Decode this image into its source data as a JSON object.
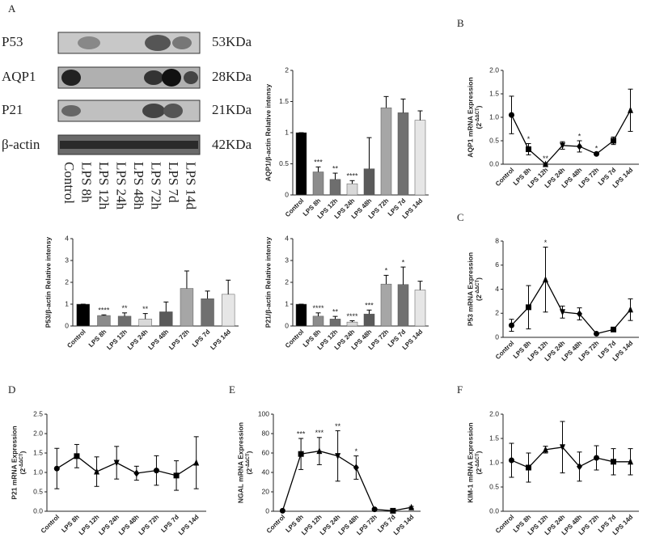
{
  "panels": [
    "A",
    "B",
    "C",
    "D",
    "E",
    "F"
  ],
  "blot": {
    "proteins": [
      "P53",
      "AQP1",
      "P21",
      "β-actin"
    ],
    "sizes": [
      "53KDa",
      "28KDa",
      "21KDa",
      "42KDa"
    ],
    "lanes": [
      "Control",
      "LPS 8h",
      "LPS 12h",
      "LPS 24h",
      "LPS 48h",
      "LPS 72h",
      "LPS 7d",
      "LPS 14d"
    ]
  },
  "chart_data": [
    {
      "type": "bar",
      "ylabel": "AQP1/β-actin Relative intensy",
      "categories": [
        "Control",
        "LPS 8h",
        "LPS 12h",
        "LPS 24h",
        "LPS 48h",
        "LPS 72h",
        "LPS 7d",
        "LPS 14d"
      ],
      "values": [
        1.0,
        0.37,
        0.25,
        0.18,
        0.42,
        1.4,
        1.32,
        1.2
      ],
      "errors": [
        0,
        0.08,
        0.1,
        0.05,
        0.5,
        0.18,
        0.22,
        0.15
      ],
      "annotations": [
        null,
        "***",
        "**",
        "****",
        null,
        null,
        null,
        null
      ],
      "colors": [
        "#000000",
        "#8c8c8c",
        "#6e6e6e",
        "#d9d9d9",
        "#5a5a5a",
        "#a6a6a6",
        "#707070",
        "#e6e6e6"
      ],
      "ylim": [
        0,
        2
      ],
      "yticks": [
        0,
        0.5,
        1,
        1.5,
        2
      ]
    },
    {
      "type": "bar",
      "ylabel": "P53/β-actin Relative intensy",
      "categories": [
        "Control",
        "LPS 8h",
        "LPS 12h",
        "LPS 24h",
        "LPS 48h",
        "LPS 72h",
        "LPS 7d",
        "LPS 14d"
      ],
      "values": [
        1.0,
        0.48,
        0.45,
        0.32,
        0.65,
        1.72,
        1.25,
        1.45
      ],
      "errors": [
        0,
        0.03,
        0.15,
        0.25,
        0.45,
        0.8,
        0.35,
        0.65
      ],
      "annotations": [
        null,
        "****",
        "**",
        "**",
        null,
        null,
        null,
        null
      ],
      "colors": [
        "#000000",
        "#8c8c8c",
        "#6e6e6e",
        "#d9d9d9",
        "#5a5a5a",
        "#a6a6a6",
        "#707070",
        "#e6e6e6"
      ],
      "ylim": [
        0,
        4
      ],
      "yticks": [
        0,
        1,
        2,
        3,
        4
      ]
    },
    {
      "type": "bar",
      "ylabel": "P21/β-actin Relative intensy",
      "categories": [
        "Control",
        "LPS 8h",
        "LPS 12h",
        "LPS 24h",
        "LPS 48h",
        "LPS 72h",
        "LPS 7d",
        "LPS 14d"
      ],
      "values": [
        1.0,
        0.45,
        0.32,
        0.18,
        0.55,
        1.92,
        1.9,
        1.65
      ],
      "errors": [
        0,
        0.15,
        0.12,
        0.06,
        0.18,
        0.4,
        0.8,
        0.4
      ],
      "annotations": [
        null,
        "****",
        "**",
        "****",
        "***",
        "*",
        "*",
        null
      ],
      "colors": [
        "#000000",
        "#8c8c8c",
        "#6e6e6e",
        "#d9d9d9",
        "#5a5a5a",
        "#a6a6a6",
        "#707070",
        "#e6e6e6"
      ],
      "ylim": [
        0,
        4
      ],
      "yticks": [
        0,
        1,
        2,
        3,
        4
      ]
    },
    {
      "type": "line",
      "ylabel": "AQP1 mRNA Expression",
      "ylabel_unit": [
        "(2",
        "-ΔΔCT",
        ")"
      ],
      "categories": [
        "Control",
        "LPS 8h",
        "LPS 12h",
        "LPS 24h",
        "LPS 48h",
        "LPS 72h",
        "LPS 7d",
        "LPS 14d"
      ],
      "values": [
        1.05,
        0.32,
        0.0,
        0.4,
        0.38,
        0.22,
        0.5,
        1.15
      ],
      "errors": [
        0.4,
        0.12,
        0.02,
        0.08,
        0.12,
        0.02,
        0.08,
        0.45
      ],
      "annotations": [
        null,
        "*",
        "**",
        null,
        "*",
        "*",
        null,
        null
      ],
      "markers": [
        "circle",
        "square",
        "triangle",
        "triangle-down",
        "diamond",
        "circle",
        "square",
        "triangle"
      ],
      "color": "#000000",
      "ylim": [
        0,
        2
      ],
      "yticks": [
        {
          "value": 0,
          "label": "0.0"
        },
        0.5,
        {
          "value": 1,
          "label": "1.0"
        },
        1.5,
        {
          "value": 2,
          "label": "2.0"
        }
      ]
    },
    {
      "type": "line",
      "ylabel": "P53 mRNA Expression",
      "ylabel_unit": [
        "(2",
        "-ΔΔCT",
        ")"
      ],
      "categories": [
        "Control",
        "LPS 8h",
        "LPS 12h",
        "LPS 24h",
        "LPS 48h",
        "LPS 72h",
        "LPS 7d",
        "LPS 14d"
      ],
      "values": [
        1.0,
        2.5,
        4.8,
        2.1,
        1.95,
        0.3,
        0.65,
        2.3
      ],
      "errors": [
        0.5,
        1.8,
        2.7,
        0.5,
        0.5,
        0.05,
        0.15,
        0.9
      ],
      "annotations": [
        null,
        null,
        "*",
        null,
        null,
        null,
        null,
        null
      ],
      "markers": [
        "circle",
        "square",
        "triangle",
        "triangle-down",
        "diamond",
        "circle",
        "square",
        "triangle"
      ],
      "color": "#000000",
      "ylim": [
        0,
        8
      ],
      "yticks": [
        0,
        2,
        4,
        6,
        8
      ]
    },
    {
      "type": "line",
      "ylabel": "P21 mRNA Expression",
      "ylabel_unit": [
        "(2",
        "-ΔΔCT",
        ")"
      ],
      "categories": [
        "Control",
        "LPS 8h",
        "LPS 12h",
        "LPS 24h",
        "LPS 48h",
        "LPS 72h",
        "LPS 7d",
        "LPS 14d"
      ],
      "values": [
        1.1,
        1.42,
        1.02,
        1.25,
        0.98,
        1.05,
        0.92,
        1.25
      ],
      "errors": [
        0.52,
        0.3,
        0.38,
        0.42,
        0.18,
        0.38,
        0.38,
        0.67
      ],
      "annotations": [
        null,
        null,
        null,
        null,
        null,
        null,
        null,
        null
      ],
      "markers": [
        "circle",
        "square",
        "triangle",
        "triangle-down",
        "diamond",
        "circle",
        "square",
        "triangle"
      ],
      "color": "#000000",
      "ylim": [
        0,
        2.5
      ],
      "yticks": [
        {
          "value": 0,
          "label": "0.0"
        },
        0.5,
        {
          "value": 1,
          "label": "1.0"
        },
        1.5,
        {
          "value": 2,
          "label": "2.0"
        },
        2.5
      ]
    },
    {
      "type": "line",
      "ylabel": "NGAL mRNA Expression",
      "ylabel_unit": [
        "(2",
        "-ΔΔCT",
        ")"
      ],
      "categories": [
        "Control",
        "LPS 8h",
        "LPS 12h",
        "LPS 24h",
        "LPS 48h",
        "LPS 72h",
        "LPS 7d",
        "LPS 14d"
      ],
      "values": [
        0.5,
        59,
        62,
        57,
        45,
        2,
        0.5,
        4
      ],
      "errors": [
        0,
        16,
        14,
        26,
        12,
        1,
        0.5,
        1
      ],
      "annotations": [
        null,
        "***",
        "***",
        "**",
        "*",
        null,
        null,
        null
      ],
      "markers": [
        "circle",
        "square",
        "triangle",
        "triangle-down",
        "diamond",
        "circle",
        "square",
        "triangle"
      ],
      "color": "#000000",
      "ylim": [
        0,
        100
      ],
      "yticks": [
        0,
        20,
        40,
        60,
        80,
        100
      ]
    },
    {
      "type": "line",
      "ylabel": "KIM-1 mRNA Expression",
      "ylabel_unit": [
        "(2",
        "-ΔΔCT",
        ")"
      ],
      "categories": [
        "Control",
        "LPS 8h",
        "LPS 12h",
        "LPS 24h",
        "LPS 48h",
        "LPS 72h",
        "LPS 7d",
        "LPS 14d"
      ],
      "values": [
        1.05,
        0.9,
        1.27,
        1.32,
        0.92,
        1.1,
        1.02,
        1.02
      ],
      "errors": [
        0.35,
        0.3,
        0.07,
        0.53,
        0.3,
        0.25,
        0.27,
        0.27
      ],
      "annotations": [
        null,
        null,
        null,
        null,
        null,
        null,
        null,
        null
      ],
      "markers": [
        "circle",
        "square",
        "triangle",
        "triangle-down",
        "diamond",
        "circle",
        "square",
        "triangle"
      ],
      "color": "#000000",
      "ylim": [
        0,
        2
      ],
      "yticks": [
        {
          "value": 0,
          "label": "0.0"
        },
        0.5,
        {
          "value": 1,
          "label": "1.0"
        },
        1.5,
        {
          "value": 2,
          "label": "2.0"
        }
      ]
    }
  ]
}
